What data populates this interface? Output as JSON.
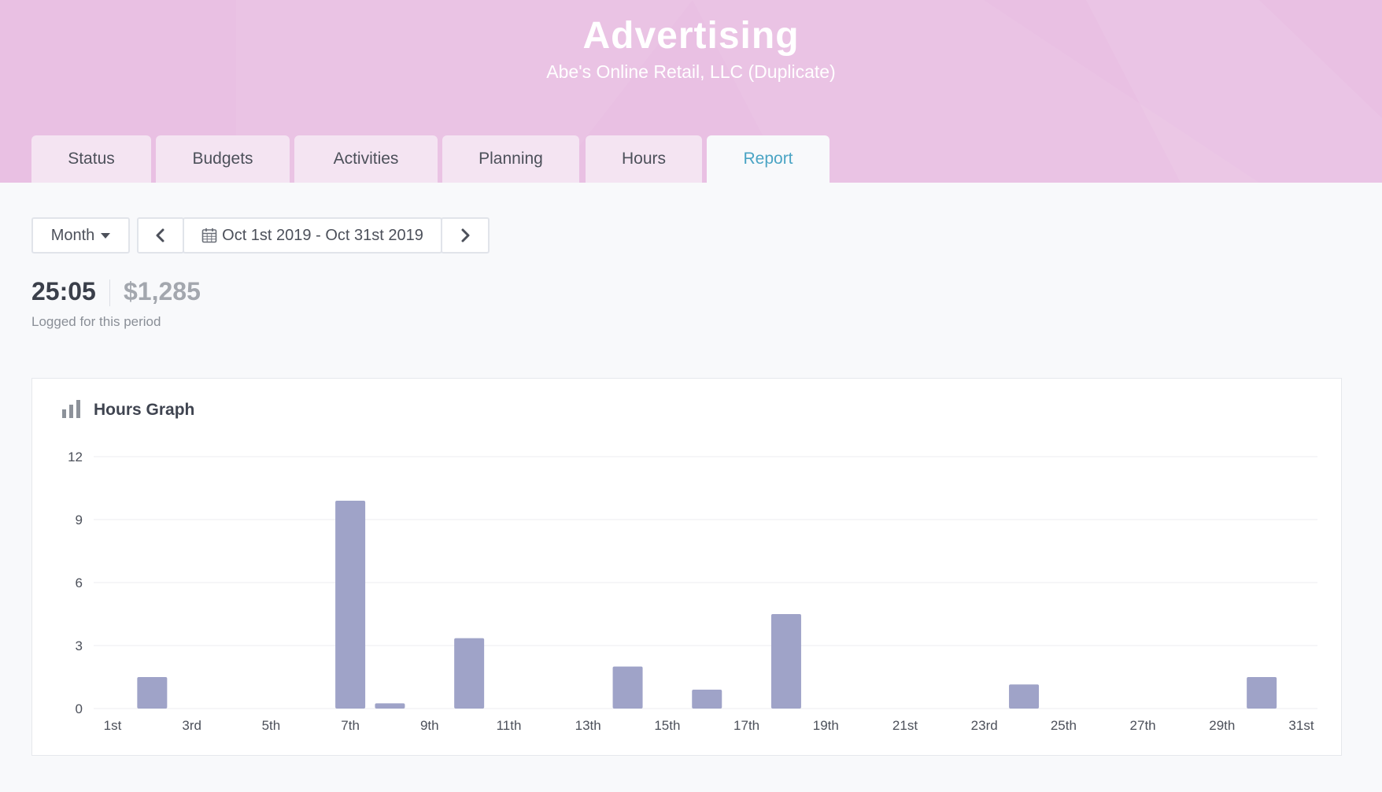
{
  "header": {
    "title": "Advertising",
    "subtitle": "Abe's Online Retail, LLC (Duplicate)"
  },
  "tabs": [
    {
      "label": "Status"
    },
    {
      "label": "Budgets"
    },
    {
      "label": "Activities"
    },
    {
      "label": "Planning"
    },
    {
      "label": "Hours"
    },
    {
      "label": "Report",
      "active": true
    }
  ],
  "toolbar": {
    "period_select": "Month",
    "date_range": "Oct 1st 2019 - Oct 31st 2019"
  },
  "summary": {
    "hours_total": "25:05",
    "amount": "$1,285",
    "label": "Logged for this period"
  },
  "graph": {
    "title": "Hours Graph"
  },
  "colors": {
    "header_bg": "#e9c0e3",
    "active_tab_text": "#4aa4c4",
    "bar": "#9fa3c8"
  },
  "chart_data": {
    "type": "bar",
    "title": "Hours Graph",
    "xlabel": "",
    "ylabel": "",
    "ylim": [
      0,
      12
    ],
    "yticks": [
      0,
      3,
      6,
      9,
      12
    ],
    "grid": true,
    "categories": [
      "1st",
      "2nd",
      "3rd",
      "4th",
      "5th",
      "6th",
      "7th",
      "8th",
      "9th",
      "10th",
      "11th",
      "12th",
      "13th",
      "14th",
      "15th",
      "16th",
      "17th",
      "18th",
      "19th",
      "20th",
      "21st",
      "22nd",
      "23rd",
      "24th",
      "25th",
      "26th",
      "27th",
      "28th",
      "29th",
      "30th",
      "31st"
    ],
    "x_tick_labels": [
      "1st",
      "3rd",
      "5th",
      "7th",
      "9th",
      "11th",
      "13th",
      "15th",
      "17th",
      "19th",
      "21st",
      "23rd",
      "25th",
      "27th",
      "29th",
      "31st"
    ],
    "values": [
      0,
      1.5,
      0,
      0,
      0,
      0,
      9.9,
      0.25,
      0,
      3.35,
      0,
      0,
      0,
      2.0,
      0,
      0.9,
      0,
      4.5,
      0,
      0,
      0,
      0,
      0,
      1.15,
      0,
      0,
      0,
      0,
      0,
      1.5,
      0
    ]
  }
}
